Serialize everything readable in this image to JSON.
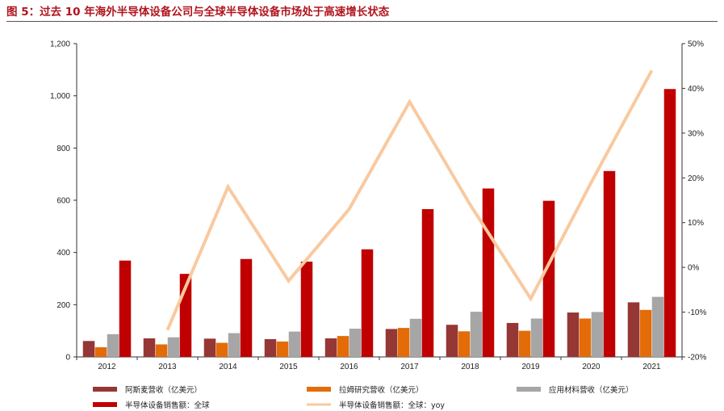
{
  "figure_title": "图 5：过去 10 年海外半导体设备公司与全球半导体设备市场处于高速增长状态",
  "chart_data": {
    "type": "bar",
    "categories": [
      "2012",
      "2013",
      "2014",
      "2015",
      "2016",
      "2017",
      "2018",
      "2019",
      "2020",
      "2021"
    ],
    "y_left": {
      "lim": [
        0,
        1200
      ],
      "ticks": [
        "0",
        "200",
        "400",
        "600",
        "800",
        "1,000",
        "1,200"
      ]
    },
    "y_right": {
      "lim": [
        -20,
        50
      ],
      "ticks": [
        "-20%",
        "-10%",
        "0%",
        "10%",
        "20%",
        "30%",
        "40%",
        "50%"
      ]
    },
    "series": [
      {
        "name": "阿斯麦营收（亿美元）",
        "type": "bar",
        "color": "#953735",
        "values": [
          61,
          71,
          70,
          68,
          71,
          107,
          123,
          130,
          170,
          209
        ]
      },
      {
        "name": "拉姆研究营收（亿美元）",
        "type": "bar",
        "color": "#e36c09",
        "values": [
          37,
          48,
          54,
          59,
          80,
          111,
          98,
          100,
          147,
          180
        ]
      },
      {
        "name": "应用材料营收（亿美元）",
        "type": "bar",
        "color": "#a6a6a6",
        "values": [
          87,
          75,
          91,
          97,
          108,
          146,
          173,
          147,
          172,
          230
        ]
      },
      {
        "name": "半导体设备销售额：全球",
        "type": "bar",
        "color": "#c00000",
        "values": [
          369,
          318,
          375,
          365,
          412,
          566,
          645,
          598,
          712,
          1026
        ]
      },
      {
        "name": "半导体设备销售额：全球：yoy",
        "type": "line",
        "axis": "right",
        "color": "#f9c9a0",
        "values": [
          null,
          -14,
          18,
          -3,
          13,
          37,
          14,
          -7,
          19,
          44
        ]
      }
    ],
    "legend_position": "bottom",
    "grid": false
  }
}
